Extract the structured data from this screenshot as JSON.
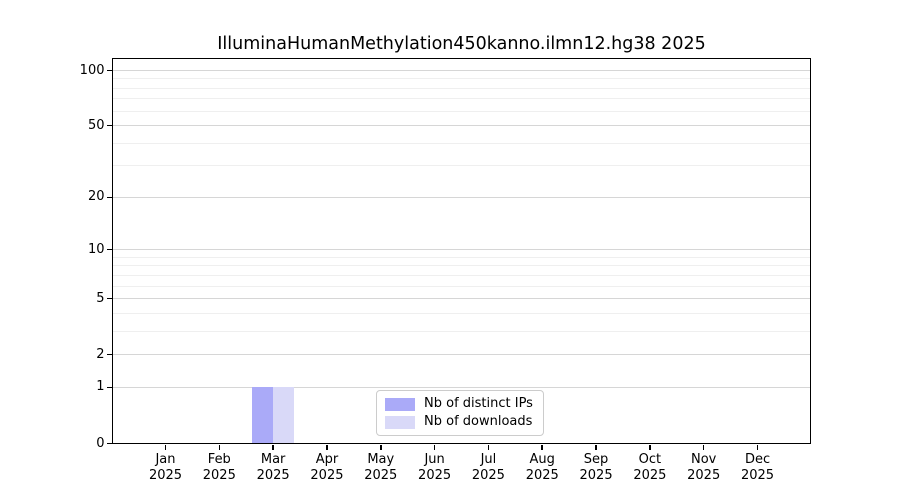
{
  "chart_data": {
    "type": "bar",
    "title": "IlluminaHumanMethylation450kanno.ilmn12.hg38 2025",
    "categories": [
      {
        "label": "Jan",
        "sub": "2025"
      },
      {
        "label": "Feb",
        "sub": "2025"
      },
      {
        "label": "Mar",
        "sub": "2025"
      },
      {
        "label": "Apr",
        "sub": "2025"
      },
      {
        "label": "May",
        "sub": "2025"
      },
      {
        "label": "Jun",
        "sub": "2025"
      },
      {
        "label": "Jul",
        "sub": "2025"
      },
      {
        "label": "Aug",
        "sub": "2025"
      },
      {
        "label": "Sep",
        "sub": "2025"
      },
      {
        "label": "Oct",
        "sub": "2025"
      },
      {
        "label": "Nov",
        "sub": "2025"
      },
      {
        "label": "Dec",
        "sub": "2025"
      }
    ],
    "series": [
      {
        "name": "Nb of distinct IPs",
        "color": "#aaaaf8",
        "values": [
          0,
          0,
          1,
          0,
          0,
          0,
          0,
          0,
          0,
          0,
          0,
          0
        ]
      },
      {
        "name": "Nb of downloads",
        "color": "#d9d9f8",
        "values": [
          0,
          0,
          1,
          0,
          0,
          0,
          0,
          0,
          0,
          0,
          0,
          0
        ]
      }
    ],
    "y_axis": {
      "scale": "log1p",
      "ticks": [
        0,
        1,
        2,
        5,
        10,
        20,
        50,
        100
      ],
      "minor_gridlines": [
        3,
        4,
        6,
        7,
        8,
        9,
        30,
        40,
        60,
        70,
        80,
        90
      ],
      "max_tick": 100
    },
    "xlabel": "",
    "ylabel": "",
    "grid": "horizontal",
    "legend_position": "bottom-center"
  }
}
